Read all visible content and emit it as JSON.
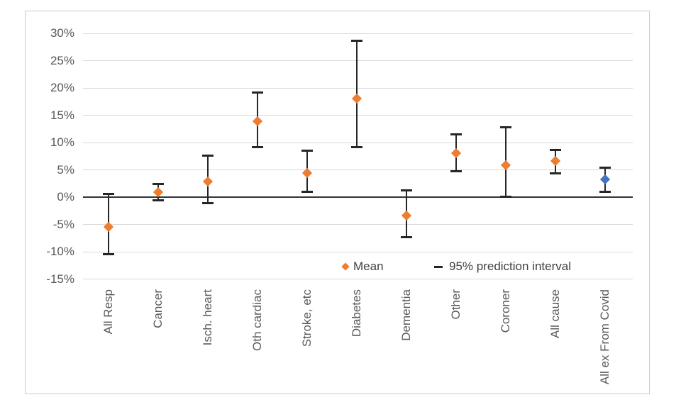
{
  "chart": {
    "colors": {
      "mean_orange": "#ED7D31",
      "highlight_blue": "#4472C4",
      "error_bar": "#262626",
      "axis_line": "#333333",
      "gridline": "#D9D9D9",
      "tick_text": "#595959",
      "frame_border": "#CBCBCB"
    }
  },
  "chart_data": {
    "type": "scatter",
    "title": "",
    "xlabel": "",
    "ylabel": "",
    "categories": [
      "All Resp",
      "Cancer",
      "Isch. heart",
      "Oth cardiac",
      "Stroke, etc",
      "Diabetes",
      "Dementia",
      "Other",
      "Coroner",
      "All cause",
      "All ex From Covid"
    ],
    "mean": [
      -5.4,
      0.9,
      2.9,
      13.9,
      4.4,
      18.0,
      -3.4,
      8.0,
      5.8,
      6.6,
      3.3
    ],
    "interval_low": [
      -10.5,
      -0.6,
      -1.1,
      9.2,
      1.0,
      9.2,
      -7.4,
      4.7,
      0.1,
      4.4,
      1.0
    ],
    "interval_high": [
      0.6,
      2.4,
      7.6,
      19.1,
      8.5,
      28.7,
      1.2,
      11.5,
      12.8,
      8.7,
      5.4
    ],
    "highlight_index": 10,
    "y_ticks": [
      "30%",
      "25%",
      "20%",
      "15%",
      "10%",
      "5%",
      "0%",
      "-5%",
      "-10%",
      "-15%"
    ],
    "y_tick_values": [
      30,
      25,
      20,
      15,
      10,
      5,
      0,
      -5,
      -10,
      -15
    ],
    "ylim": [
      -15,
      30
    ],
    "grid": "horizontal",
    "legend": [
      "Mean",
      "95% prediction interval"
    ],
    "legend_position": "bottom-inside"
  }
}
